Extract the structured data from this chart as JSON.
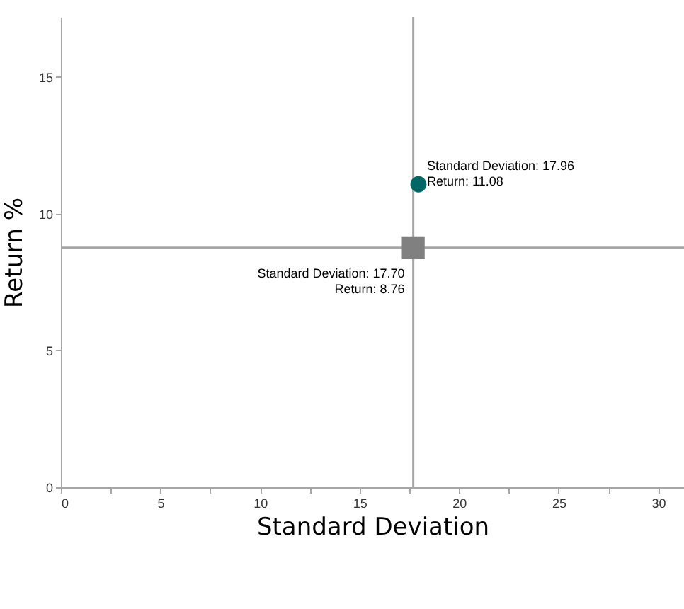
{
  "chart_data": {
    "type": "scatter",
    "xlabel": "Standard Deviation",
    "ylabel": "Return %",
    "xlim": [
      0,
      31.3
    ],
    "ylim": [
      0,
      17.2
    ],
    "xticks": [
      0,
      {
        "value": 2.5,
        "label": null
      },
      5,
      {
        "value": 7.5,
        "label": null
      },
      10,
      {
        "value": 12.5,
        "label": null
      },
      15,
      {
        "value": 17.5,
        "label": null
      },
      20,
      {
        "value": 22.5,
        "label": null
      },
      25,
      {
        "value": 27.5,
        "label": null
      },
      30
    ],
    "yticks": [
      0,
      5,
      10,
      15
    ],
    "grid": false,
    "series": [
      {
        "x": [
          17.96
        ],
        "values": [
          11.08
        ],
        "color": "#006666",
        "marker": "circle"
      },
      {
        "x": [
          17.7
        ],
        "values": [
          8.76
        ],
        "color": "#808080",
        "marker": "square"
      }
    ],
    "ref_lines": [
      {
        "axis": "x",
        "value": 17.7,
        "color": "#a6a6a6"
      },
      {
        "axis": "y",
        "value": 8.76,
        "color": "#a6a6a6"
      }
    ],
    "annotations": [
      {
        "text": "Standard Deviation: 17.96\nReturn: 11.08",
        "x": 17.96,
        "y": 11.08
      },
      {
        "text": "Standard Deviation: 17.70\nReturn: 8.76",
        "x": 17.7,
        "y": 8.76
      }
    ]
  }
}
